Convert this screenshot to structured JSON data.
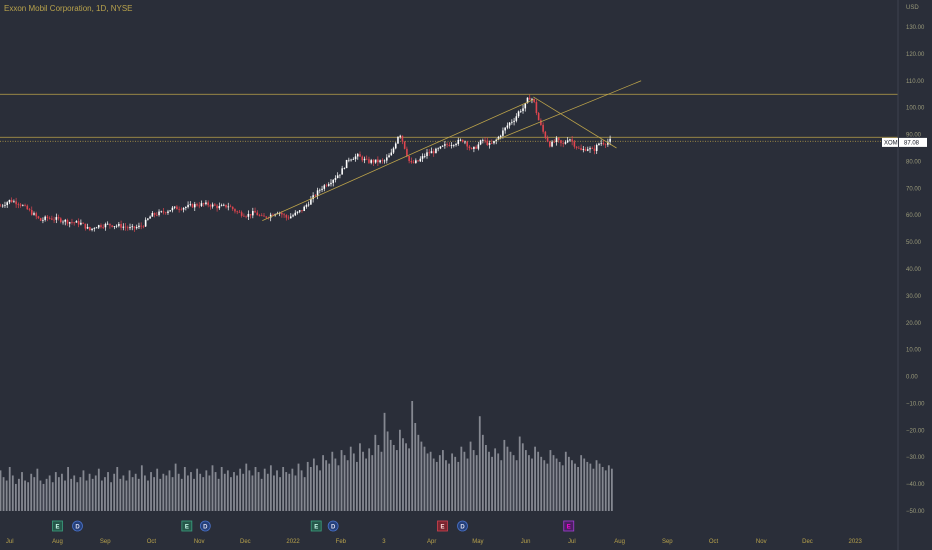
{
  "chart_data": {
    "type": "candlestick",
    "title": "Exxon Mobil Corporation, 1D, NYSE",
    "currency": "USD",
    "symbol": "XOM",
    "last_price": "87.08",
    "y_ticks": [
      "130.00",
      "120.00",
      "110.00",
      "100.00",
      "90.00",
      "80.00",
      "70.00",
      "60.00",
      "50.00",
      "40.00",
      "30.00",
      "20.00",
      "10.00",
      "0.00",
      "−10.00",
      "−20.00",
      "−30.00",
      "−40.00",
      "−50.00"
    ],
    "ylim": [
      -55,
      135
    ],
    "x_months": [
      {
        "label": "Jul",
        "day": 6
      },
      {
        "label": "Aug",
        "day": 37
      },
      {
        "label": "Sep",
        "day": 68
      },
      {
        "label": "Oct",
        "day": 98
      },
      {
        "label": "Nov",
        "day": 129
      },
      {
        "label": "Dec",
        "day": 159
      },
      {
        "label": "2022",
        "day": 190
      },
      {
        "label": "Feb",
        "day": 221
      },
      {
        "label": "3",
        "day": 249
      },
      {
        "label": "Apr",
        "day": 280
      },
      {
        "label": "May",
        "day": 310
      },
      {
        "label": "Jun",
        "day": 341
      },
      {
        "label": "Jul",
        "day": 371
      },
      {
        "label": "Aug",
        "day": 402
      },
      {
        "label": "Sep",
        "day": 433
      },
      {
        "label": "Oct",
        "day": 463
      },
      {
        "label": "Nov",
        "day": 494
      },
      {
        "label": "Dec",
        "day": 524
      },
      {
        "label": "2023",
        "day": 555
      }
    ],
    "price_keypoints": [
      [
        0,
        63.5
      ],
      [
        6,
        65.5
      ],
      [
        12,
        64.5
      ],
      [
        20,
        61
      ],
      [
        26,
        58
      ],
      [
        30,
        59
      ],
      [
        37,
        58.5
      ],
      [
        45,
        57.5
      ],
      [
        52,
        57
      ],
      [
        58,
        54.5
      ],
      [
        62,
        56
      ],
      [
        70,
        56.5
      ],
      [
        78,
        56
      ],
      [
        85,
        55
      ],
      [
        92,
        56
      ],
      [
        98,
        60
      ],
      [
        105,
        61
      ],
      [
        112,
        62.5
      ],
      [
        120,
        63
      ],
      [
        128,
        64
      ],
      [
        135,
        64
      ],
      [
        142,
        63
      ],
      [
        148,
        63.5
      ],
      [
        154,
        61
      ],
      [
        160,
        60
      ],
      [
        165,
        61
      ],
      [
        170,
        59
      ],
      [
        175,
        60
      ],
      [
        180,
        61.5
      ],
      [
        186,
        59
      ],
      [
        190,
        60
      ],
      [
        196,
        62
      ],
      [
        202,
        66
      ],
      [
        208,
        70
      ],
      [
        215,
        73
      ],
      [
        221,
        76
      ],
      [
        226,
        81
      ],
      [
        232,
        82
      ],
      [
        238,
        80
      ],
      [
        244,
        80
      ],
      [
        249,
        80
      ],
      [
        254,
        83
      ],
      [
        259,
        91
      ],
      [
        262,
        86
      ],
      [
        266,
        79
      ],
      [
        271,
        80
      ],
      [
        277,
        83
      ],
      [
        283,
        84
      ],
      [
        289,
        86
      ],
      [
        295,
        87
      ],
      [
        301,
        88
      ],
      [
        306,
        84
      ],
      [
        310,
        86
      ],
      [
        313,
        88
      ],
      [
        318,
        86
      ],
      [
        322,
        88
      ],
      [
        326,
        91
      ],
      [
        330,
        94
      ],
      [
        334,
        96
      ],
      [
        337,
        99
      ],
      [
        340,
        100
      ],
      [
        343,
        104
      ],
      [
        346,
        103
      ],
      [
        349,
        96
      ],
      [
        353,
        90
      ],
      [
        357,
        86
      ],
      [
        361,
        88
      ],
      [
        365,
        86
      ],
      [
        369,
        89
      ],
      [
        373,
        86
      ],
      [
        377,
        84
      ],
      [
        381,
        85
      ],
      [
        385,
        84
      ],
      [
        389,
        87
      ],
      [
        393,
        87
      ],
      [
        397,
        88
      ]
    ],
    "volume_pct": [
      24,
      20,
      18,
      26,
      21,
      16,
      19,
      23,
      18,
      17,
      22,
      20,
      25,
      18,
      16,
      19,
      21,
      17,
      23,
      20,
      22,
      18,
      26,
      19,
      21,
      17,
      20,
      24,
      18,
      22,
      19,
      21,
      25,
      18,
      20,
      23,
      17,
      22,
      26,
      19,
      21,
      18,
      24,
      20,
      22,
      19,
      27,
      21,
      18,
      23,
      20,
      25,
      19,
      22,
      21,
      24,
      20,
      28,
      22,
      19,
      26,
      21,
      23,
      19,
      25,
      22,
      20,
      24,
      21,
      27,
      23,
      19,
      26,
      22,
      24,
      20,
      23,
      21,
      25,
      22,
      28,
      24,
      21,
      26,
      23,
      19,
      25,
      22,
      27,
      21,
      24,
      20,
      26,
      23,
      22,
      25,
      21,
      28,
      24,
      20,
      29,
      26,
      31,
      27,
      24,
      33,
      30,
      28,
      35,
      31,
      27,
      36,
      33,
      30,
      38,
      34,
      29,
      40,
      35,
      31,
      37,
      33,
      45,
      39,
      35,
      58,
      47,
      42,
      39,
      36,
      48,
      43,
      40,
      37,
      65,
      52,
      45,
      41,
      38,
      34,
      35,
      31,
      29,
      33,
      36,
      30,
      28,
      34,
      32,
      29,
      38,
      35,
      31,
      41,
      36,
      33,
      56,
      45,
      39,
      35,
      32,
      37,
      34,
      30,
      42,
      38,
      35,
      33,
      30,
      44,
      40,
      36,
      33,
      31,
      38,
      35,
      32,
      30,
      28,
      36,
      33,
      31,
      29,
      27,
      35,
      32,
      30,
      28,
      26,
      33,
      31,
      29,
      28,
      25,
      30,
      28,
      26,
      24,
      27,
      25
    ],
    "horizontal_lines": [
      105,
      89,
      87.5
    ],
    "trend_lines": [
      {
        "from": [
          170,
          58
        ],
        "to": [
          346,
          103
        ]
      },
      {
        "from": [
          322,
          88
        ],
        "to": [
          416,
          110
        ]
      },
      {
        "from": [
          346,
          104
        ],
        "to": [
          400,
          85
        ]
      }
    ],
    "events": [
      {
        "letter": "E",
        "day": 37,
        "kind": "earnings"
      },
      {
        "letter": "D",
        "day": 50,
        "kind": "dividend"
      },
      {
        "letter": "E",
        "day": 121,
        "kind": "earnings"
      },
      {
        "letter": "D",
        "day": 133,
        "kind": "dividend"
      },
      {
        "letter": "E",
        "day": 205,
        "kind": "earnings"
      },
      {
        "letter": "D",
        "day": 216,
        "kind": "dividend"
      },
      {
        "letter": "E",
        "day": 287,
        "kind": "earnings-red"
      },
      {
        "letter": "D",
        "day": 300,
        "kind": "dividend"
      },
      {
        "letter": "E",
        "day": 369,
        "kind": "upcoming"
      }
    ],
    "colors": {
      "background": "#2a2e39",
      "up_candle": "#ffffff",
      "down_candle": "#e0454f",
      "volume": "#9598a1",
      "drawing": "#bca34a",
      "axis_text": "#9a9a7a",
      "month_text": "#b9a34c"
    }
  }
}
